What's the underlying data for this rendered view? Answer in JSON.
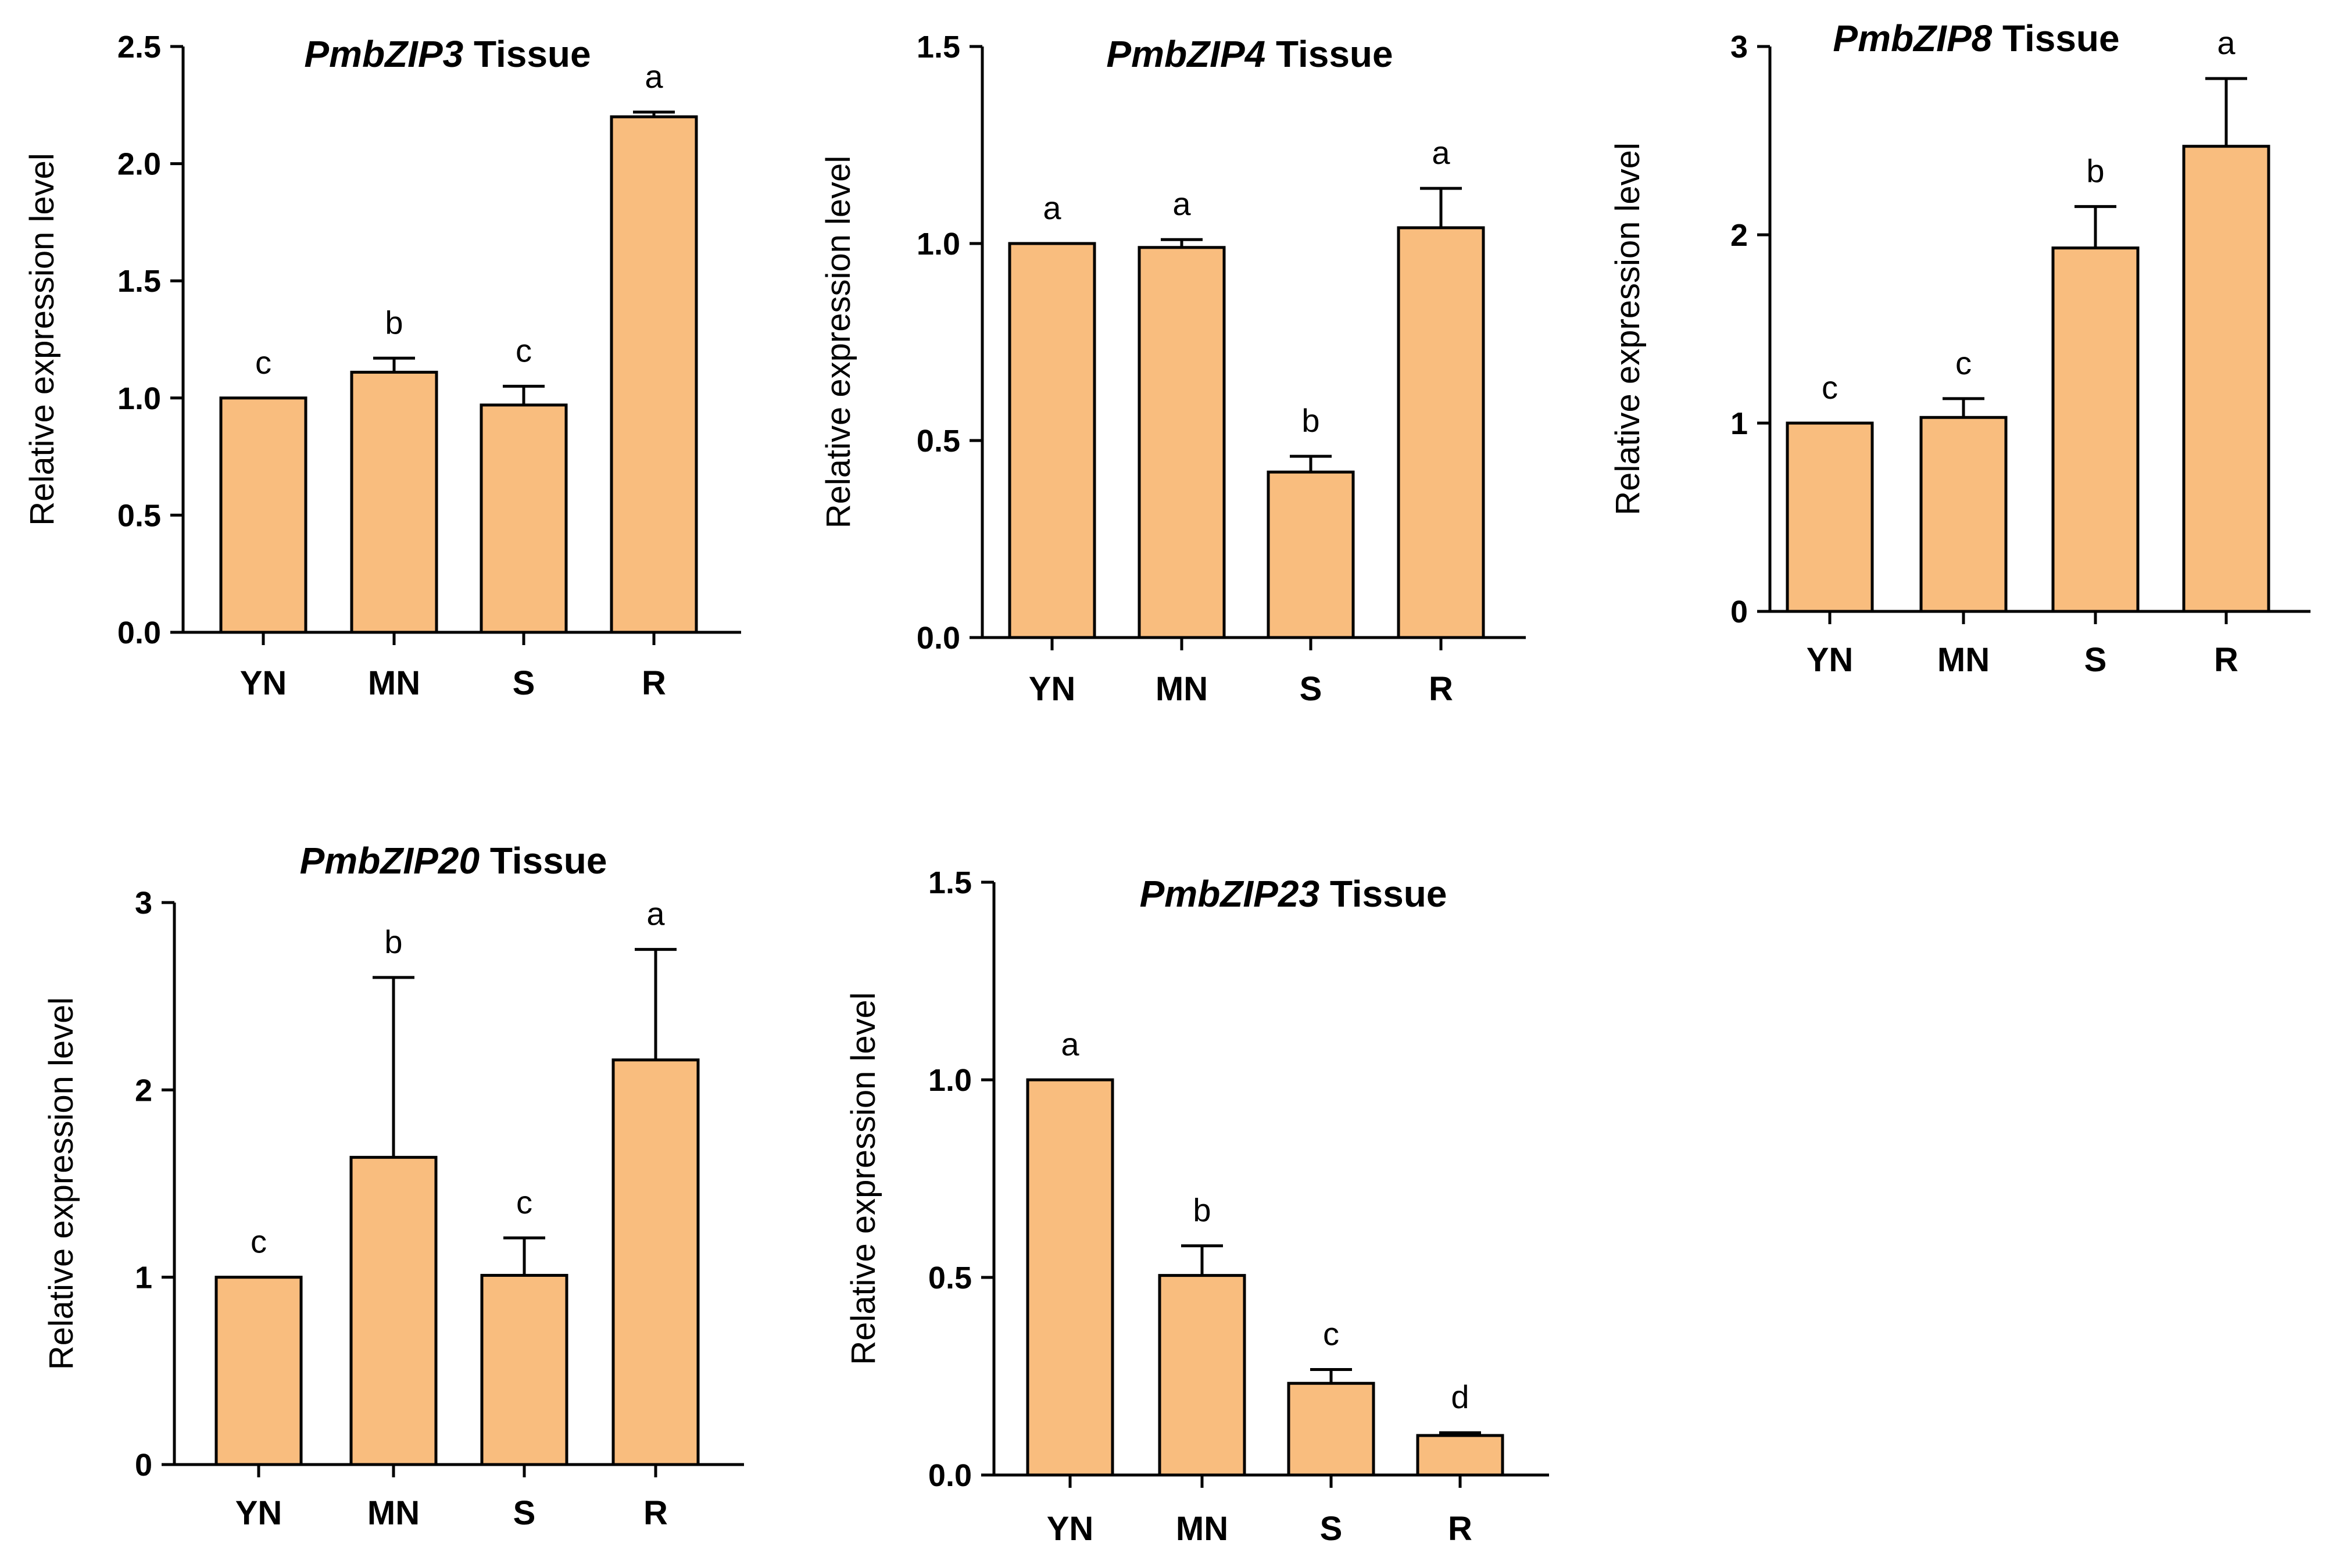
{
  "chart_data": [
    {
      "type": "bar",
      "title_gene": "PmbZIP3",
      "title_suffix": " Tissue",
      "ylabel": "Relative expression level",
      "xlabel": "",
      "categories": [
        "YN",
        "MN",
        "S",
        "R"
      ],
      "values": [
        1.0,
        1.11,
        0.97,
        2.2
      ],
      "errors": [
        0,
        0.06,
        0.08,
        0.02
      ],
      "letters": [
        "c",
        "b",
        "c",
        "a"
      ],
      "ylim": [
        0,
        2.5
      ],
      "yticks": [
        0,
        0.5,
        1.0,
        1.5,
        2.0,
        2.5
      ],
      "ytick_labels": [
        "0.0",
        "0.5",
        "1.0",
        "1.5",
        "2.0",
        "2.5"
      ],
      "bar_color": "#f9bd7e"
    },
    {
      "type": "bar",
      "title_gene": "PmbZIP4",
      "title_suffix": " Tissue",
      "ylabel": "Relative expression level",
      "xlabel": "",
      "categories": [
        "YN",
        "MN",
        "S",
        "R"
      ],
      "values": [
        1.0,
        0.99,
        0.42,
        1.04
      ],
      "errors": [
        0,
        0.02,
        0.04,
        0.1
      ],
      "letters": [
        "a",
        "a",
        "b",
        "a"
      ],
      "ylim": [
        0,
        1.5
      ],
      "yticks": [
        0,
        0.5,
        1.0,
        1.5
      ],
      "ytick_labels": [
        "0.0",
        "0.5",
        "1.0",
        "1.5"
      ],
      "bar_color": "#f9bd7e"
    },
    {
      "type": "bar",
      "title_gene": "PmbZIP8",
      "title_suffix": " Tissue",
      "ylabel": "Relative expression level",
      "xlabel": "",
      "categories": [
        "YN",
        "MN",
        "S",
        "R"
      ],
      "values": [
        1.0,
        1.03,
        1.93,
        2.47
      ],
      "errors": [
        0,
        0.1,
        0.22,
        0.36
      ],
      "letters": [
        "c",
        "c",
        "b",
        "a"
      ],
      "ylim": [
        0,
        3
      ],
      "yticks": [
        0,
        1,
        2,
        3
      ],
      "ytick_labels": [
        "0",
        "1",
        "2",
        "3"
      ],
      "bar_color": "#f9bd7e"
    },
    {
      "type": "bar",
      "title_gene": "PmbZIP20",
      "title_suffix": " Tissue",
      "ylabel": "Relative expression level",
      "xlabel": "",
      "categories": [
        "YN",
        "MN",
        "S",
        "R"
      ],
      "values": [
        1.0,
        1.64,
        1.01,
        2.16
      ],
      "errors": [
        0,
        0.96,
        0.2,
        0.59
      ],
      "letters": [
        "c",
        "b",
        "c",
        "a"
      ],
      "ylim": [
        0,
        3
      ],
      "yticks": [
        0,
        1,
        2,
        3
      ],
      "ytick_labels": [
        "0",
        "1",
        "2",
        "3"
      ],
      "bar_color": "#f9bd7e"
    },
    {
      "type": "bar",
      "title_gene": "PmbZIP23",
      "title_suffix": " Tissue",
      "ylabel": "Relative expression level",
      "xlabel": "",
      "categories": [
        "YN",
        "MN",
        "S",
        "R"
      ],
      "values": [
        1.0,
        0.505,
        0.232,
        0.1
      ],
      "errors": [
        0,
        0.075,
        0.035,
        0.007
      ],
      "letters": [
        "a",
        "b",
        "c",
        "d"
      ],
      "ylim": [
        0,
        1.5
      ],
      "yticks": [
        0,
        0.5,
        1.0,
        1.5
      ],
      "ytick_labels": [
        "0.0",
        "0.5",
        "1.0",
        "1.5"
      ],
      "bar_color": "#f9bd7e"
    }
  ]
}
